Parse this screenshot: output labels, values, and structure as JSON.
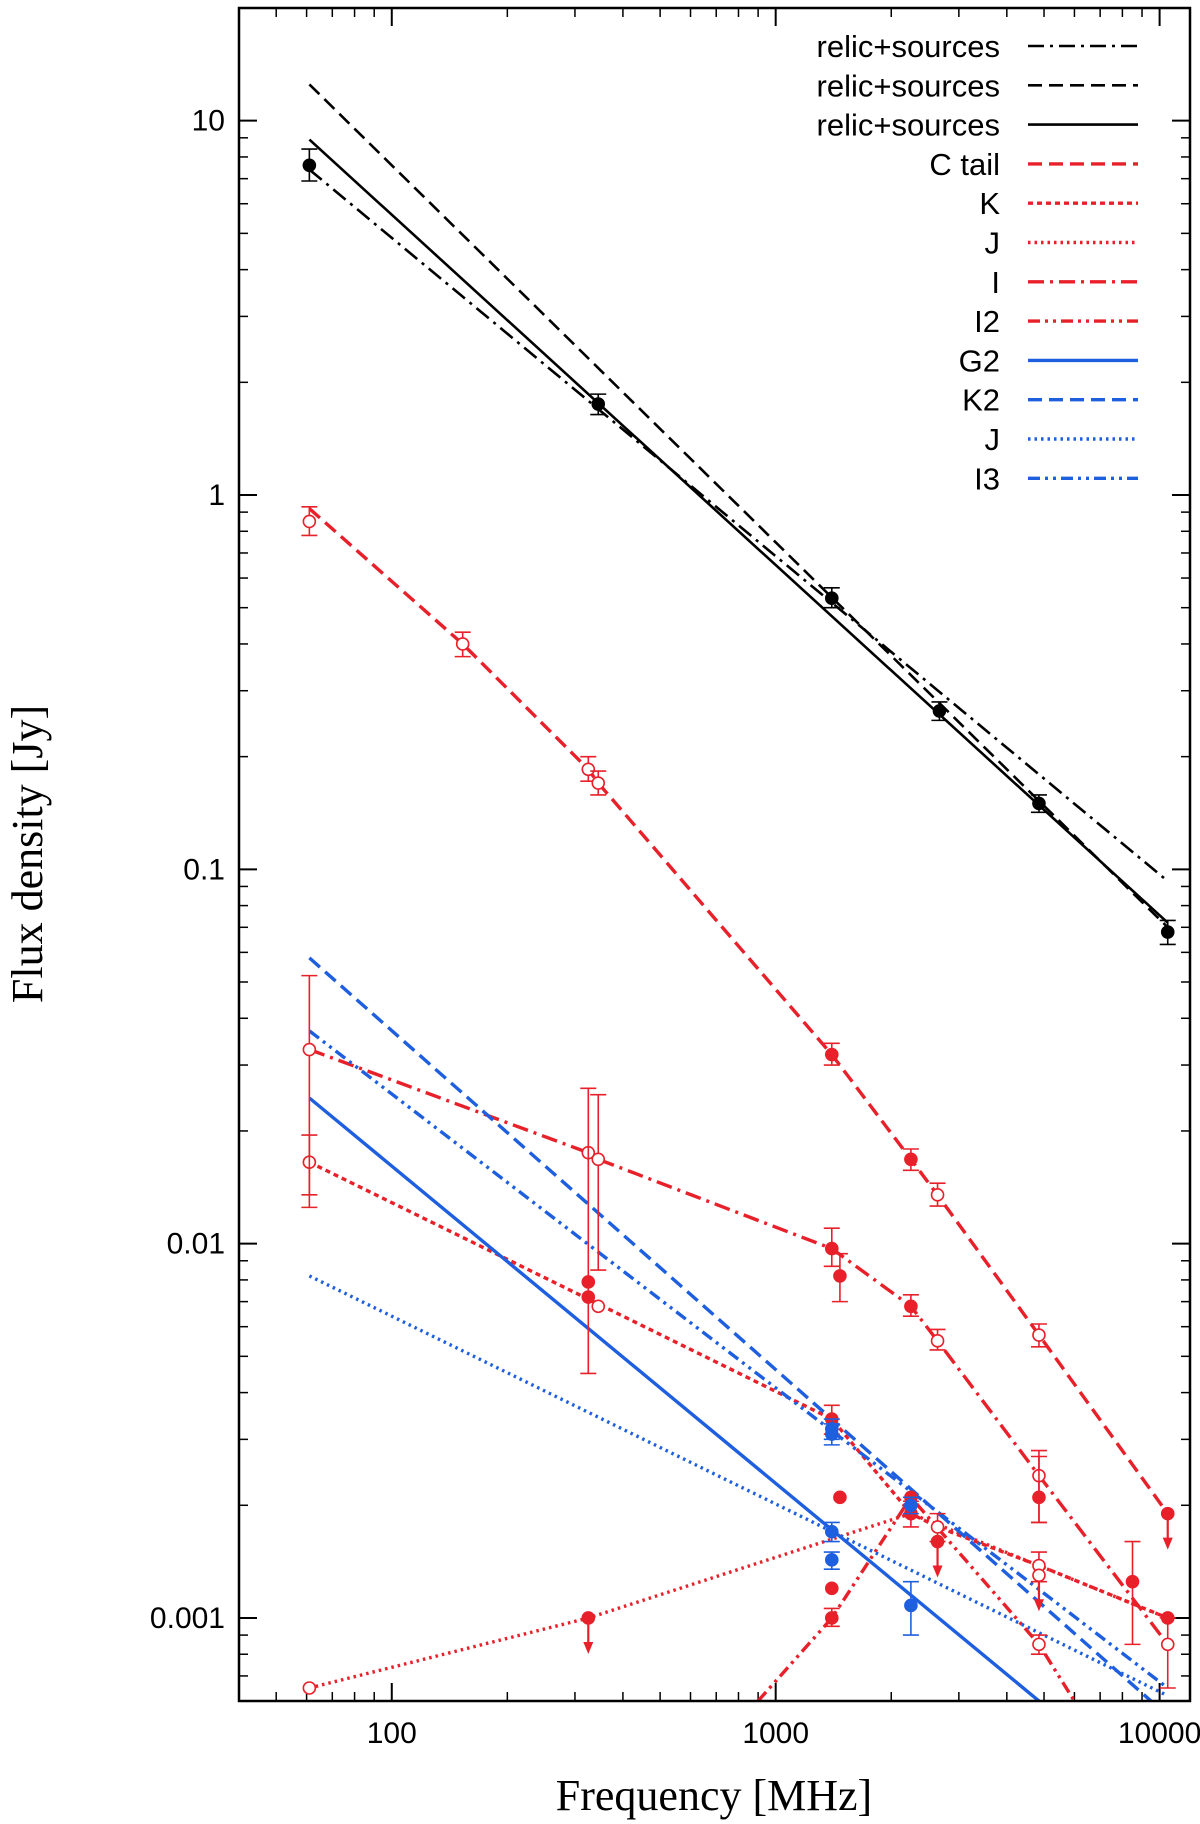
{
  "chart_data": {
    "type": "line",
    "xscale": "log",
    "yscale": "log",
    "xlim": [
      40,
      12000
    ],
    "ylim": [
      0.0006,
      20
    ],
    "xlabel": "Frequency [MHz]",
    "ylabel": "Flux density [Jy]",
    "x_ticks": [
      {
        "value": 100,
        "label": "100"
      },
      {
        "value": 1000,
        "label": "1000"
      },
      {
        "value": 10000,
        "label": "10000"
      }
    ],
    "y_ticks": [
      {
        "value": 0.001,
        "label": "0.001"
      },
      {
        "value": 0.01,
        "label": "0.01"
      },
      {
        "value": 0.1,
        "label": "0.1"
      },
      {
        "value": 1,
        "label": "1"
      },
      {
        "value": 10,
        "label": "10"
      }
    ],
    "legend_position": "top-right",
    "series": [
      {
        "name": "relic+sources",
        "color": "#000000",
        "dash": "dashdot",
        "line": {
          "x": [
            61,
            10500
          ],
          "y": [
            7.4,
            0.093
          ]
        },
        "points": []
      },
      {
        "name": "relic+sources",
        "color": "#000000",
        "dash": "dashed",
        "line": {
          "x": [
            61,
            10500
          ],
          "y": [
            12.5,
            0.07
          ]
        },
        "points": []
      },
      {
        "name": "relic+sources",
        "color": "#000000",
        "dash": "solid",
        "line": {
          "x": [
            61,
            10500
          ],
          "y": [
            8.9,
            0.072
          ]
        },
        "points": [
          {
            "x": 61,
            "y": 7.6,
            "err": [
              6.9,
              8.4
            ],
            "filled": true
          },
          {
            "x": 345,
            "y": 1.75,
            "err": [
              1.64,
              1.86
            ],
            "filled": true
          },
          {
            "x": 1400,
            "y": 0.53,
            "err": [
              0.5,
              0.565
            ],
            "filled": true
          },
          {
            "x": 2670,
            "y": 0.265,
            "err": [
              0.25,
              0.28
            ],
            "filled": true
          },
          {
            "x": 4850,
            "y": 0.15,
            "err": [
              0.142,
              0.158
            ],
            "filled": true
          },
          {
            "x": 10500,
            "y": 0.068,
            "err": [
              0.063,
              0.073
            ],
            "filled": true
          }
        ]
      },
      {
        "name": "C tail",
        "color": "#e8202a",
        "dash": "dashed",
        "line": {
          "x": [
            61,
            153,
            325,
            345,
            1400,
            2250,
            2640,
            4850,
            10500
          ],
          "y": [
            0.92,
            0.4,
            0.185,
            0.17,
            0.032,
            0.0168,
            0.0135,
            0.0057,
            0.0019
          ]
        },
        "points": [
          {
            "x": 61,
            "y": 0.85,
            "err": [
              0.78,
              0.93
            ],
            "filled": false
          },
          {
            "x": 153,
            "y": 0.4,
            "err": [
              0.37,
              0.43
            ],
            "filled": false
          },
          {
            "x": 325,
            "y": 0.185,
            "err": [
              0.172,
              0.2
            ],
            "filled": false
          },
          {
            "x": 345,
            "y": 0.17,
            "err": [
              0.158,
              0.183
            ],
            "filled": false
          },
          {
            "x": 1400,
            "y": 0.032,
            "err": [
              0.03,
              0.0343
            ],
            "filled": true
          },
          {
            "x": 2250,
            "y": 0.0168,
            "err": [
              0.0157,
              0.0179
            ],
            "filled": true
          },
          {
            "x": 2640,
            "y": 0.0135,
            "err": [
              0.0126,
              0.0145
            ],
            "filled": false
          },
          {
            "x": 4850,
            "y": 0.0057,
            "err": [
              0.0053,
              0.0061
            ],
            "filled": false
          },
          {
            "x": 10500,
            "y": 0.0019,
            "err": null,
            "filled": true,
            "upper_limit": true
          }
        ]
      },
      {
        "name": "K",
        "color": "#e8202a",
        "dash": "dotted_dense",
        "line": {
          "x": [
            61,
            345,
            1400,
            2250,
            2640,
            4850,
            10500
          ],
          "y": [
            0.0165,
            0.0069,
            0.0034,
            0.0019,
            0.00175,
            0.00138,
            0.001
          ]
        },
        "points": [
          {
            "x": 61,
            "y": 0.0165,
            "err": [
              0.0125,
              0.0195
            ],
            "filled": false
          },
          {
            "x": 325,
            "y": 0.0072,
            "err": null,
            "filled": true
          },
          {
            "x": 345,
            "y": 0.0068,
            "err": null,
            "filled": false
          },
          {
            "x": 1400,
            "y": 0.0034,
            "err": [
              0.0031,
              0.0037
            ],
            "filled": true
          },
          {
            "x": 2250,
            "y": 0.0019,
            "err": [
              0.00175,
              0.00205
            ],
            "filled": true
          },
          {
            "x": 2640,
            "y": 0.00175,
            "err": [
              0.0016,
              0.0019
            ],
            "filled": false
          },
          {
            "x": 4850,
            "y": 0.00138,
            "err": [
              0.00125,
              0.0015
            ],
            "filled": false
          },
          {
            "x": 8500,
            "y": 0.00125,
            "err": [
              0.00085,
              0.0016
            ],
            "filled": true
          },
          {
            "x": 10500,
            "y": 0.001,
            "err": null,
            "filled": true
          }
        ]
      },
      {
        "name": "J",
        "color": "#e8202a",
        "dash": "dotted",
        "line": {
          "x": [
            61,
            325,
            2250,
            10500
          ],
          "y": [
            0.00065,
            0.001,
            0.0019,
            0.001
          ]
        },
        "points": [
          {
            "x": 61,
            "y": 0.00065,
            "err": null,
            "filled": false
          },
          {
            "x": 325,
            "y": 0.001,
            "err": null,
            "filled": true,
            "upper_limit": true
          },
          {
            "x": 1400,
            "y": 0.0012,
            "err": null,
            "filled": true
          },
          {
            "x": 2250,
            "y": 0.0019,
            "err": null,
            "filled": true
          },
          {
            "x": 2640,
            "y": 0.0016,
            "err": null,
            "filled": true,
            "upper_limit": true
          },
          {
            "x": 4850,
            "y": 0.0013,
            "err": null,
            "filled": false,
            "upper_limit": true
          }
        ]
      },
      {
        "name": "I",
        "color": "#e8202a",
        "dash": "dashdot",
        "line": {
          "x": [
            61,
            325,
            345,
            1400,
            2250,
            2640,
            4850,
            10500
          ],
          "y": [
            0.033,
            0.0175,
            0.0168,
            0.0097,
            0.0068,
            0.0055,
            0.0024,
            0.00085
          ]
        },
        "points": [
          {
            "x": 61,
            "y": 0.033,
            "err": [
              0.0135,
              0.052
            ],
            "filled": false
          },
          {
            "x": 325,
            "y": 0.0175,
            "err": null,
            "filled": false
          },
          {
            "x": 345,
            "y": 0.0168,
            "err": [
              0.0085,
              0.025
            ],
            "filled": false
          },
          {
            "x": 1400,
            "y": 0.0097,
            "err": [
              0.0087,
              0.011
            ],
            "filled": true
          },
          {
            "x": 1470,
            "y": 0.0082,
            "err": [
              0.007,
              0.0094
            ],
            "filled": true
          },
          {
            "x": 2250,
            "y": 0.0068,
            "err": [
              0.0064,
              0.0073
            ],
            "filled": true
          },
          {
            "x": 2640,
            "y": 0.0055,
            "err": [
              0.0052,
              0.0059
            ],
            "filled": false
          },
          {
            "x": 4850,
            "y": 0.0024,
            "err": [
              0.0018,
              0.0028
            ],
            "filled": false
          },
          {
            "x": 10500,
            "y": 0.00085,
            "err": [
              0.00065,
              0.001
            ],
            "filled": false
          }
        ]
      },
      {
        "name": "I2",
        "color": "#e8202a",
        "dash": "dashdotdot",
        "line": {
          "x": [
            900,
            1400,
            2250,
            4850,
            6000
          ],
          "y": [
            0.0006,
            0.001,
            0.0021,
            0.00085,
            0.0006
          ]
        },
        "points": [
          {
            "x": 325,
            "y": 0.0079,
            "err": [
              0.0045,
              0.026
            ],
            "filled": true
          },
          {
            "x": 1400,
            "y": 0.001,
            "err": [
              0.00095,
              0.00106
            ],
            "filled": true
          },
          {
            "x": 1470,
            "y": 0.0021,
            "err": null,
            "filled": true
          },
          {
            "x": 2250,
            "y": 0.0021,
            "err": null,
            "filled": true
          },
          {
            "x": 4850,
            "y": 0.00085,
            "err": [
              0.0008,
              0.0009
            ],
            "filled": false
          },
          {
            "x": 4850,
            "y": 0.0021,
            "err": [
              0.0018,
              0.0027
            ],
            "filled": true
          }
        ]
      },
      {
        "name": "G2",
        "color": "#1e5fe0",
        "dash": "solid",
        "line": {
          "x": [
            61,
            4850
          ],
          "y": [
            0.0245,
            0.0006
          ]
        },
        "points": [
          {
            "x": 1400,
            "y": 0.0017,
            "err": [
              0.0016,
              0.0018
            ],
            "filled": true
          },
          {
            "x": 2250,
            "y": 0.00108,
            "err": [
              0.0009,
              0.00125
            ],
            "filled": true
          }
        ]
      },
      {
        "name": "K2",
        "color": "#1e5fe0",
        "dash": "dashed",
        "line": {
          "x": [
            61,
            9500
          ],
          "y": [
            0.058,
            0.0006
          ]
        },
        "points": [
          {
            "x": 1400,
            "y": 0.0031,
            "err": [
              0.0029,
              0.0033
            ],
            "filled": true
          }
        ]
      },
      {
        "name": "J",
        "color": "#1e5fe0",
        "dash": "dotted",
        "line": {
          "x": [
            61,
            10500
          ],
          "y": [
            0.0082,
            0.00062
          ]
        },
        "points": [
          {
            "x": 1400,
            "y": 0.00143,
            "err": [
              0.00135,
              0.0015
            ],
            "filled": true
          }
        ]
      },
      {
        "name": "I3",
        "color": "#1e5fe0",
        "dash": "dashdotdot",
        "line": {
          "x": [
            61,
            10500
          ],
          "y": [
            0.037,
            0.00065
          ]
        },
        "points": [
          {
            "x": 1400,
            "y": 0.0032,
            "err": [
              0.003,
              0.0034
            ],
            "filled": true
          },
          {
            "x": 2250,
            "y": 0.002,
            "err": [
              0.0019,
              0.0021
            ],
            "filled": true
          }
        ]
      }
    ]
  }
}
